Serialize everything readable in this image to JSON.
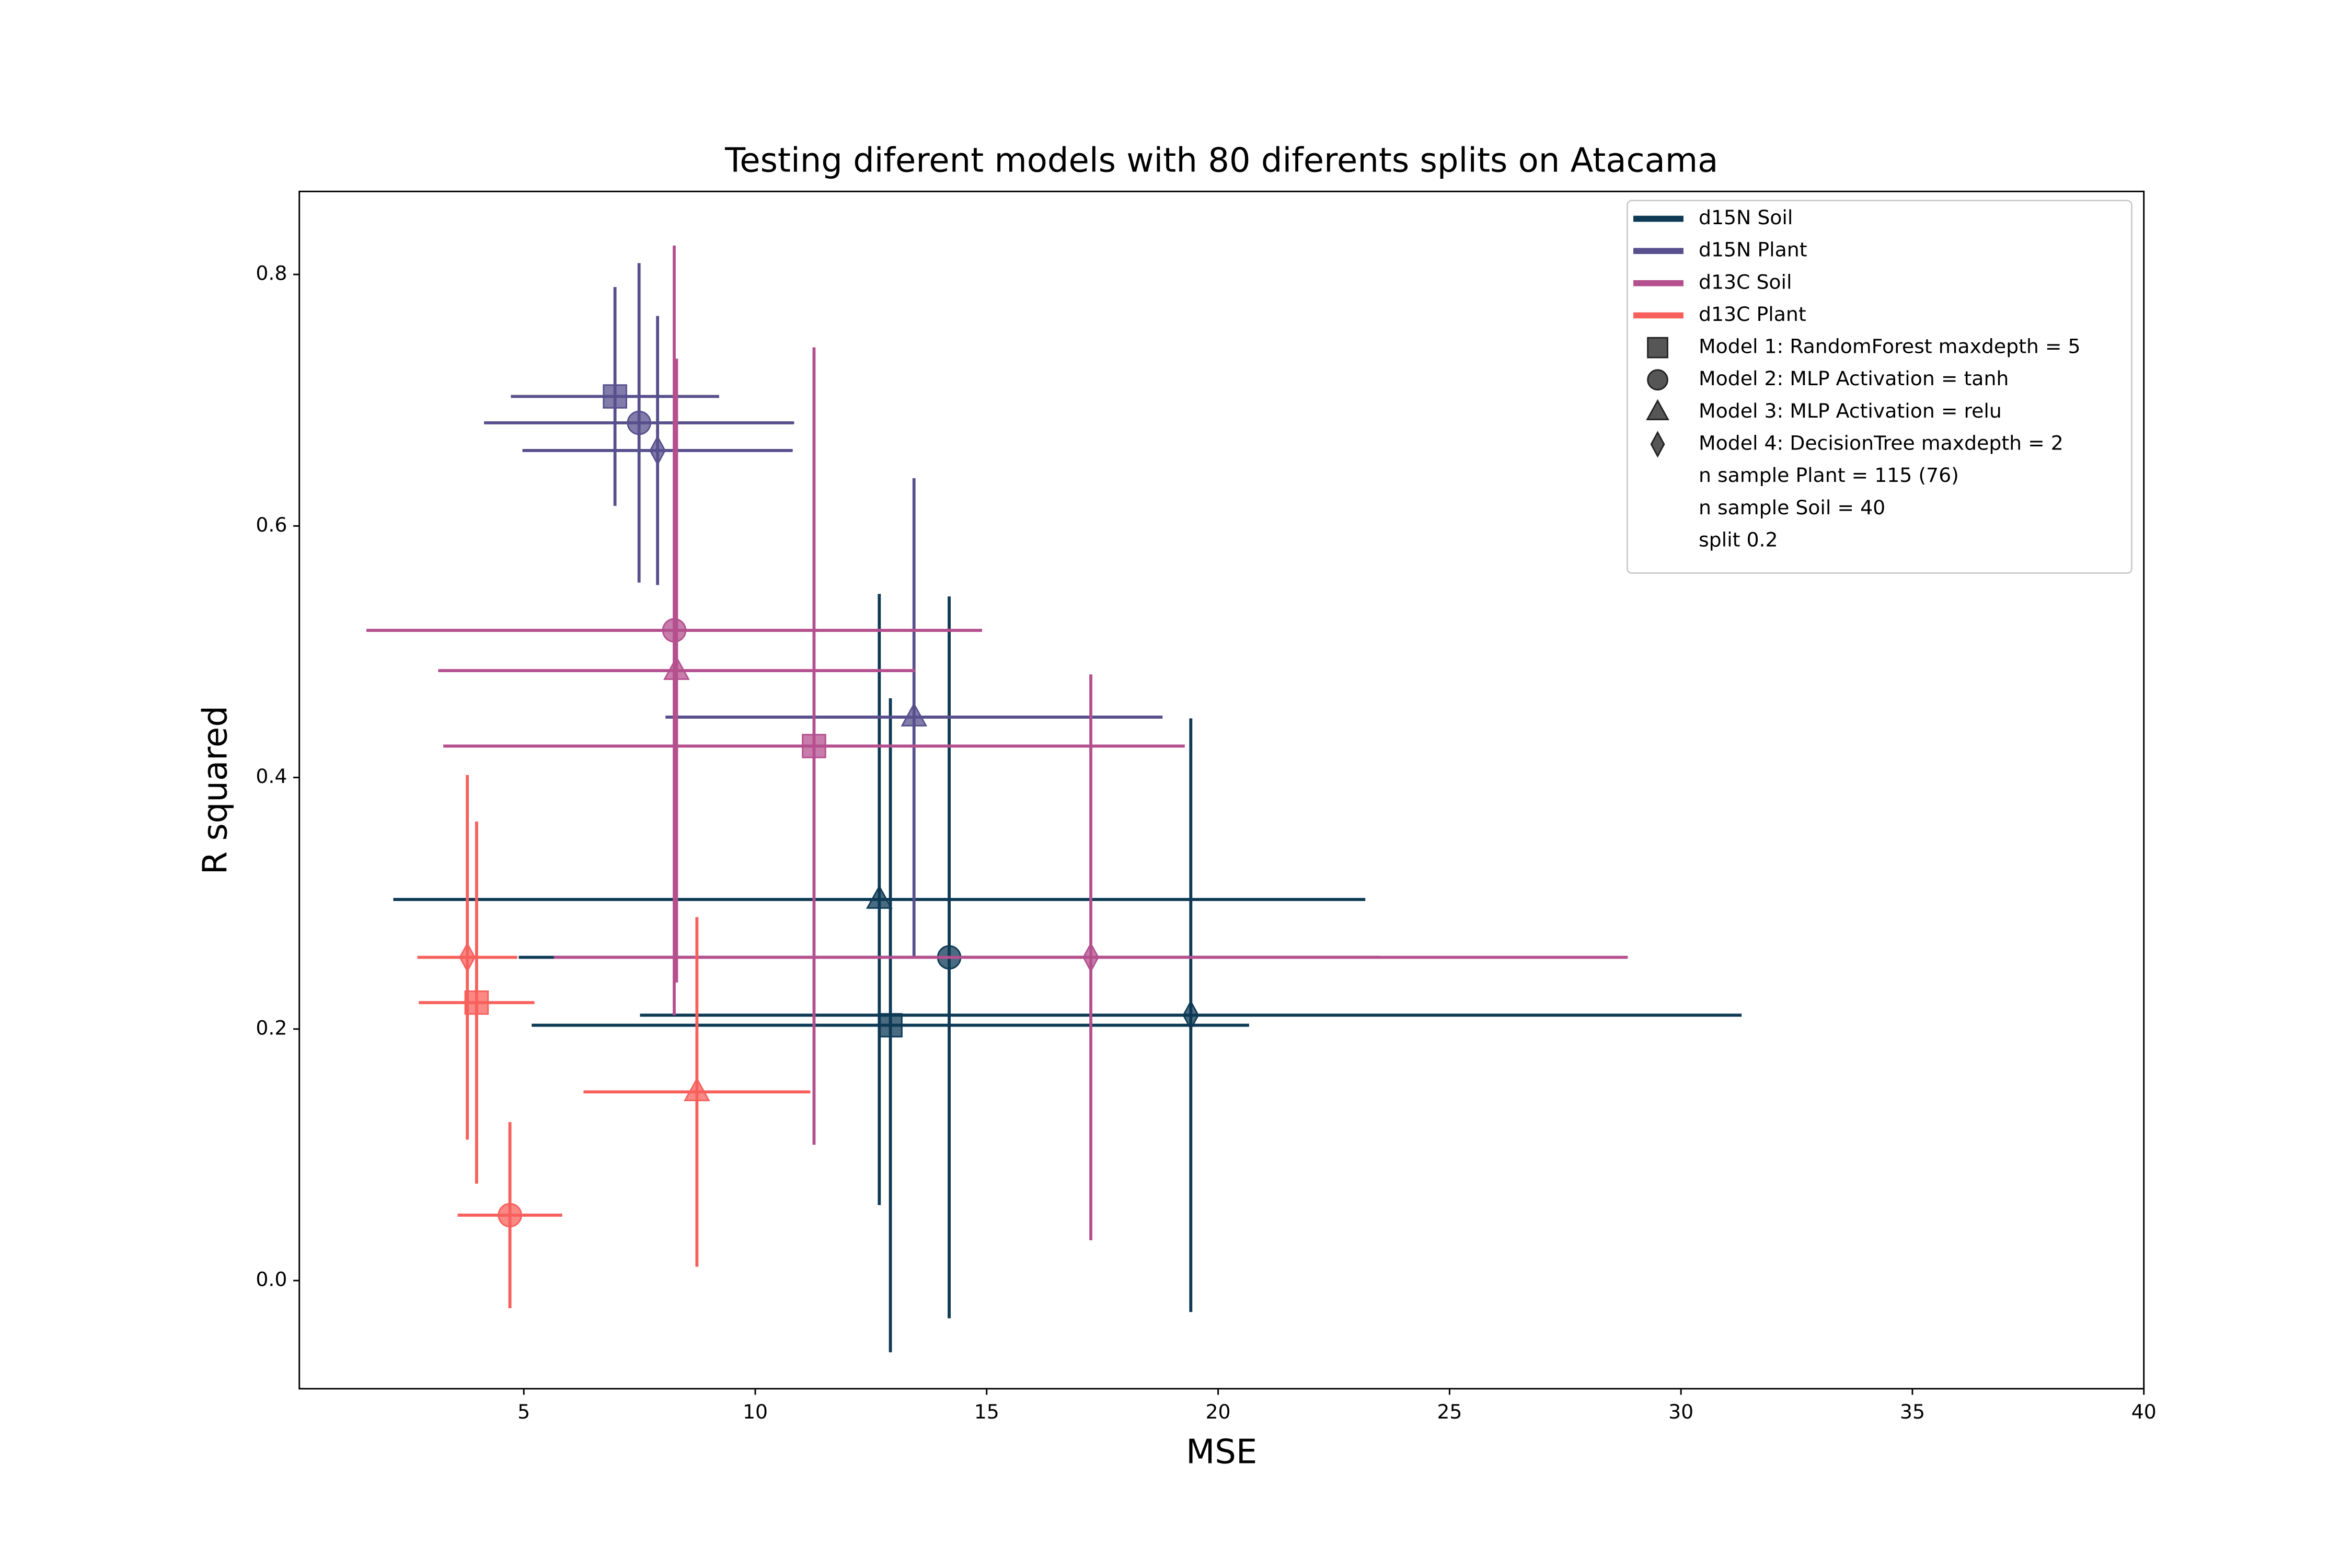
{
  "chart_data": {
    "type": "errorbar-scatter",
    "title": "Testing diferent models with 80 diferents splits on Atacama",
    "x_label": "MSE",
    "y_label": "R squared",
    "xlim": [
      0.15,
      40
    ],
    "ylim": [
      -0.086,
      0.866
    ],
    "xticks": [
      5,
      10,
      15,
      20,
      25,
      30,
      35,
      40
    ],
    "yticks": [
      {
        "value": 0,
        "label": "0.0"
      },
      0.2,
      0.4,
      0.6,
      0.8
    ],
    "legend_position": "upper right",
    "models": [
      {
        "label": "Model 1: RandomForest maxdepth = 5",
        "marker": "square"
      },
      {
        "label": "Model 2: MLP Activation = tanh",
        "marker": "circle"
      },
      {
        "label": "Model 3: MLP Activation = relu",
        "marker": "triangle"
      },
      {
        "label": "Model 4: DecisionTree maxdepth = 2",
        "marker": "diamond"
      }
    ],
    "legend_notes": [
      "n sample Plant = 115 (76)",
      "n sample Soil = 40",
      "split 0.2"
    ],
    "series": [
      {
        "name": "d15N Soil",
        "color": "#0e3a55",
        "x": [
          12.92,
          14.19,
          12.68,
          19.41
        ],
        "values": [
          0.203,
          0.257,
          0.303,
          0.211
        ],
        "xerr": [
          7.75,
          9.3,
          10.5,
          11.9
        ],
        "yerr": [
          0.26,
          0.287,
          0.243,
          0.236
        ]
      },
      {
        "name": "d15N Plant",
        "color": "#58508d",
        "x": [
          6.97,
          7.49,
          13.43,
          7.89
        ],
        "values": [
          0.703,
          0.682,
          0.448,
          0.66
        ],
        "xerr": [
          2.25,
          3.35,
          5.37,
          2.92
        ],
        "yerr": [
          0.087,
          0.127,
          0.19,
          0.107
        ]
      },
      {
        "name": "d13C Soil",
        "color": "#b5508f",
        "x": [
          11.27,
          8.25,
          8.3,
          17.25
        ],
        "values": [
          0.425,
          0.517,
          0.485,
          0.257
        ],
        "xerr": [
          8.01,
          6.65,
          5.15,
          11.6
        ],
        "yerr": [
          0.317,
          0.306,
          0.248,
          0.225
        ]
      },
      {
        "name": "d13C Plant",
        "color": "#f8605c",
        "x": [
          3.98,
          4.7,
          8.74,
          3.78
        ],
        "values": [
          0.221,
          0.052,
          0.15,
          0.257
        ],
        "xerr": [
          1.25,
          1.13,
          2.45,
          1.08
        ],
        "yerr": [
          0.144,
          0.074,
          0.139,
          0.145
        ]
      }
    ]
  }
}
